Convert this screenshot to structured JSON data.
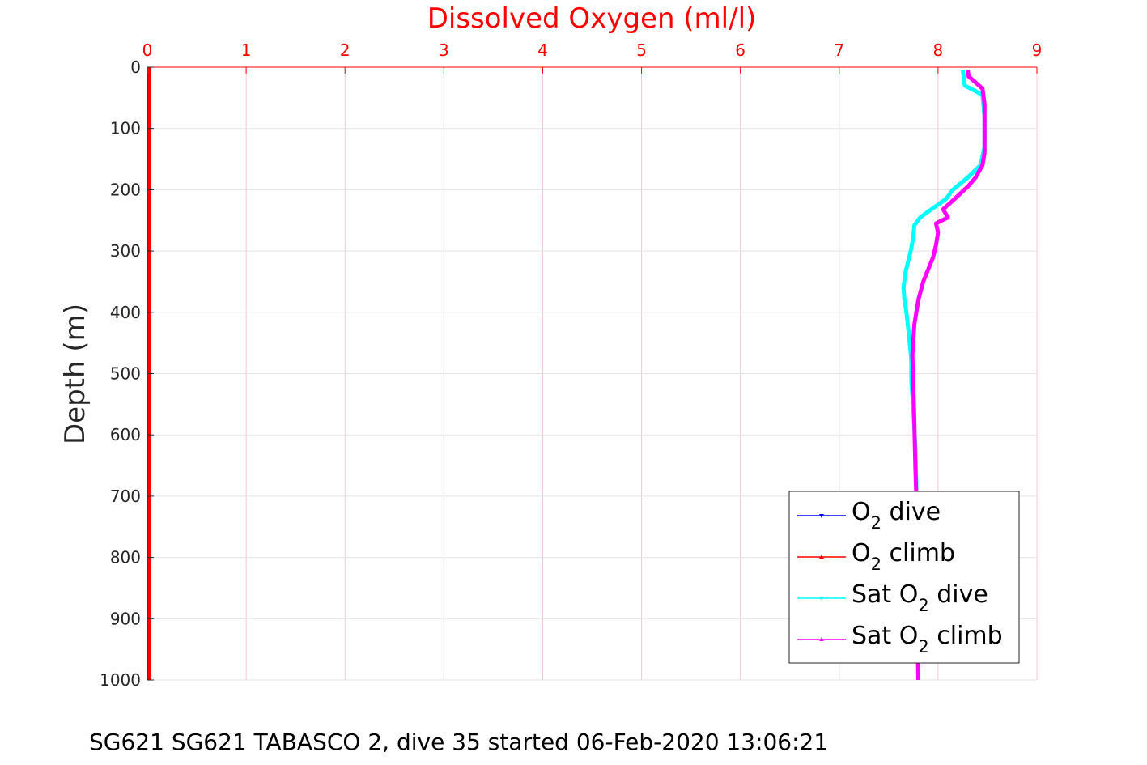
{
  "chart_data": {
    "type": "line",
    "title": "Dissolved Oxygen (ml/l)",
    "ylabel": "Depth (m)",
    "caption": "SG621 SG621 TABASCO 2, dive 35 started 06-Feb-2020 13:06:21",
    "xlim": [
      0,
      9
    ],
    "ylim": [
      0,
      1000
    ],
    "y_reversed": true,
    "x_axis_position": "top",
    "grid": true,
    "x_ticks": [
      "0",
      "1",
      "2",
      "3",
      "4",
      "5",
      "6",
      "7",
      "8",
      "9"
    ],
    "y_ticks": [
      "0",
      "100",
      "200",
      "300",
      "400",
      "500",
      "600",
      "700",
      "800",
      "900",
      "1000"
    ],
    "legend": {
      "position": "bottom-right",
      "entries": [
        {
          "pre": "O",
          "sub": "2",
          "post": " dive",
          "color": "#0000ff",
          "marker": "down-triangle"
        },
        {
          "pre": "O",
          "sub": "2",
          "post": " climb",
          "color": "#ff0000",
          "marker": "up-triangle"
        },
        {
          "pre": "Sat O",
          "sub": "2",
          "post": " dive",
          "color": "#00ffff",
          "marker": "down-triangle"
        },
        {
          "pre": "Sat O",
          "sub": "2",
          "post": " climb",
          "color": "#ff00ff",
          "marker": "up-triangle"
        }
      ]
    },
    "series": [
      {
        "name": "O2 dive",
        "color": "#0000ff",
        "points": [
          [
            0.02,
            0
          ],
          [
            0.02,
            1000
          ]
        ]
      },
      {
        "name": "O2 climb",
        "color": "#ff0000",
        "points": [
          [
            0.02,
            0
          ],
          [
            0.02,
            1000
          ]
        ]
      },
      {
        "name": "Sat O2 dive",
        "color": "#00ffff",
        "points": [
          [
            8.25,
            5
          ],
          [
            8.26,
            15
          ],
          [
            8.27,
            30
          ],
          [
            8.45,
            45
          ],
          [
            8.47,
            80
          ],
          [
            8.47,
            130
          ],
          [
            8.43,
            160
          ],
          [
            8.3,
            180
          ],
          [
            8.15,
            200
          ],
          [
            8.08,
            215
          ],
          [
            7.95,
            230
          ],
          [
            7.82,
            245
          ],
          [
            7.76,
            258
          ],
          [
            7.75,
            275
          ],
          [
            7.73,
            295
          ],
          [
            7.7,
            315
          ],
          [
            7.67,
            335
          ],
          [
            7.65,
            360
          ],
          [
            7.66,
            380
          ],
          [
            7.68,
            400
          ],
          [
            7.7,
            430
          ],
          [
            7.72,
            460
          ],
          [
            7.73,
            480
          ],
          [
            7.73,
            510
          ],
          [
            7.75,
            560
          ],
          [
            7.77,
            620
          ],
          [
            7.78,
            680
          ],
          [
            7.78,
            700
          ]
        ]
      },
      {
        "name": "Sat O2 climb",
        "color": "#ff00ff",
        "points": [
          [
            8.3,
            5
          ],
          [
            8.31,
            15
          ],
          [
            8.38,
            25
          ],
          [
            8.45,
            35
          ],
          [
            8.47,
            60
          ],
          [
            8.47,
            100
          ],
          [
            8.47,
            140
          ],
          [
            8.45,
            160
          ],
          [
            8.38,
            180
          ],
          [
            8.3,
            195
          ],
          [
            8.2,
            210
          ],
          [
            8.12,
            222
          ],
          [
            8.05,
            232
          ],
          [
            8.1,
            245
          ],
          [
            7.98,
            255
          ],
          [
            8.0,
            270
          ],
          [
            7.98,
            290
          ],
          [
            7.95,
            310
          ],
          [
            7.9,
            330
          ],
          [
            7.85,
            350
          ],
          [
            7.8,
            380
          ],
          [
            7.76,
            420
          ],
          [
            7.74,
            470
          ],
          [
            7.75,
            520
          ],
          [
            7.76,
            580
          ],
          [
            7.77,
            650
          ],
          [
            7.78,
            700
          ],
          [
            7.78,
            800
          ],
          [
            7.79,
            900
          ],
          [
            7.8,
            1000
          ]
        ]
      }
    ]
  }
}
